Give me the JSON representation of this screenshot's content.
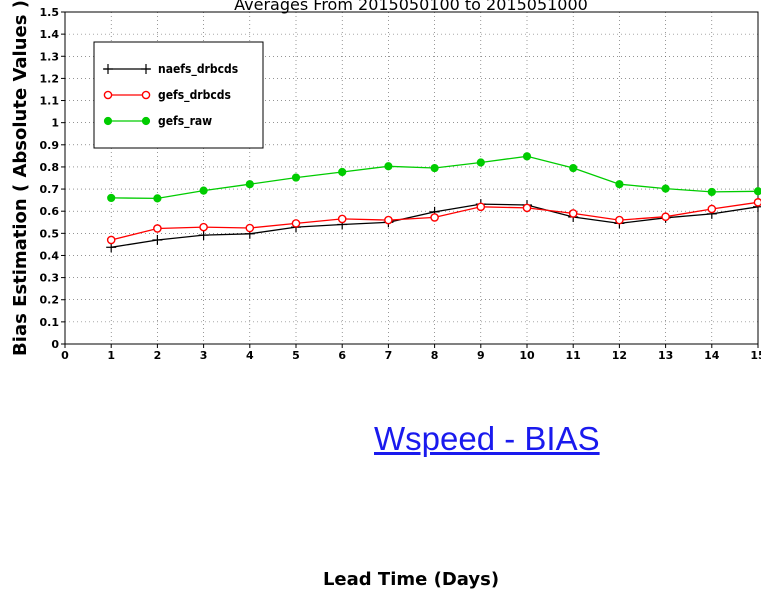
{
  "chart_data": {
    "type": "line",
    "title": "Averages From 2015050100 to 2015051000",
    "xlabel": "Lead Time (Days)",
    "ylabel": "Bias Estimation ( Absolute Values )",
    "xlim": [
      0,
      15
    ],
    "ylim": [
      0,
      1.5
    ],
    "x_ticks": [
      "0",
      "1",
      "2",
      "3",
      "4",
      "5",
      "6",
      "7",
      "8",
      "9",
      "10",
      "11",
      "12",
      "13",
      "14",
      "15"
    ],
    "y_ticks": [
      "0",
      "0.1",
      "0.2",
      "0.3",
      "0.4",
      "0.5",
      "0.6",
      "0.7",
      "0.8",
      "0.9",
      "1",
      "1.1",
      "1.2",
      "1.3",
      "1.4",
      "1.5"
    ],
    "grid": true,
    "legend_position": "top-left",
    "x": [
      1,
      2,
      3,
      4,
      5,
      6,
      7,
      8,
      9,
      10,
      11,
      12,
      13,
      14,
      15
    ],
    "series": [
      {
        "name": "naefs_drbcds",
        "color": "#000000",
        "marker": "plus",
        "values": [
          0.437,
          0.47,
          0.492,
          0.498,
          0.528,
          0.54,
          0.55,
          0.597,
          0.632,
          0.628,
          0.574,
          0.545,
          0.57,
          0.588,
          0.62
        ]
      },
      {
        "name": "gefs_drbcds",
        "color": "#ff0000",
        "marker": "open-circle",
        "values": [
          0.47,
          0.522,
          0.528,
          0.524,
          0.545,
          0.565,
          0.56,
          0.572,
          0.62,
          0.615,
          0.59,
          0.56,
          0.575,
          0.61,
          0.64
        ]
      },
      {
        "name": "gefs_raw",
        "color": "#00cc00",
        "marker": "filled-circle",
        "values": [
          0.66,
          0.658,
          0.693,
          0.722,
          0.752,
          0.777,
          0.803,
          0.795,
          0.82,
          0.848,
          0.795,
          0.722,
          0.702,
          0.687,
          0.69
        ]
      }
    ],
    "annotation": "Wspeed - BIAS",
    "annotation_color": "#1a1aee"
  }
}
